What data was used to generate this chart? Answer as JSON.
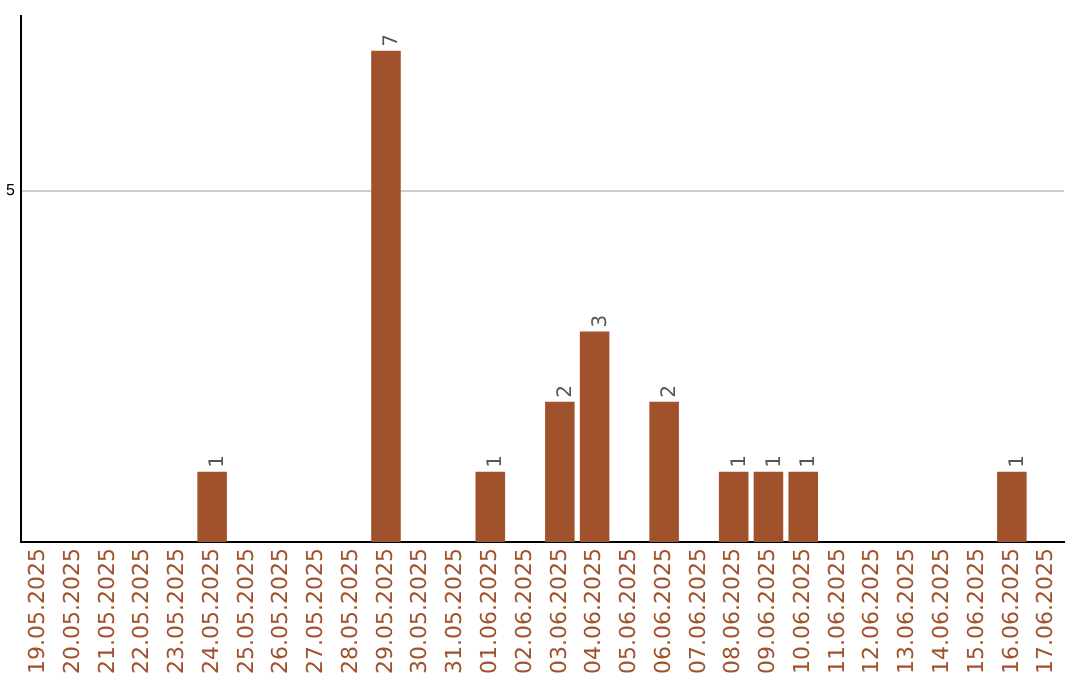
{
  "chart_data": {
    "type": "bar",
    "categories": [
      "19.05.2025",
      "20.05.2025",
      "21.05.2025",
      "22.05.2025",
      "23.05.2025",
      "24.05.2025",
      "25.05.2025",
      "26.05.2025",
      "27.05.2025",
      "28.05.2025",
      "29.05.2025",
      "30.05.2025",
      "31.05.2025",
      "01.06.2025",
      "02.06.2025",
      "03.06.2025",
      "04.06.2025",
      "05.06.2025",
      "06.06.2025",
      "07.06.2025",
      "08.06.2025",
      "09.06.2025",
      "10.06.2025",
      "11.06.2025",
      "12.06.2025",
      "13.06.2025",
      "14.06.2025",
      "15.06.2025",
      "16.06.2025",
      "17.06.2025"
    ],
    "values": [
      0,
      0,
      0,
      0,
      0,
      1,
      0,
      0,
      0,
      0,
      7,
      0,
      0,
      1,
      0,
      2,
      3,
      0,
      2,
      0,
      1,
      1,
      1,
      0,
      0,
      0,
      0,
      0,
      1,
      0
    ],
    "value_labels": [
      null,
      null,
      null,
      null,
      null,
      "1",
      null,
      null,
      null,
      null,
      "7",
      null,
      null,
      "1",
      null,
      "2",
      "3",
      null,
      "2",
      null,
      "1",
      "1",
      "1",
      null,
      null,
      null,
      null,
      null,
      "1",
      null
    ],
    "color": "#a0522d",
    "ylim": [
      0,
      7.5
    ],
    "yticks": [
      5
    ],
    "grid": "y",
    "legend": false
  }
}
